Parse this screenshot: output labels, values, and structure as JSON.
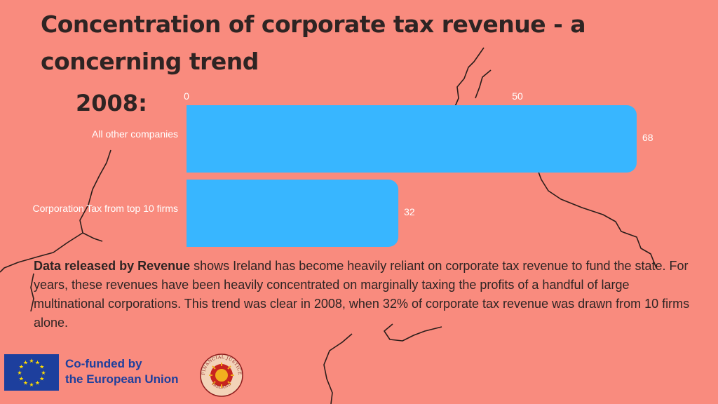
{
  "title": "Concentration of corporate tax revenue - a concerning trend",
  "chart_heading": "2008:",
  "chart_data": {
    "type": "bar",
    "orientation": "horizontal",
    "categories": [
      "All other companies",
      "Corporation Tax from top 10 firms"
    ],
    "values": [
      68,
      32
    ],
    "axis_ticks": [
      0,
      50
    ],
    "xlim": [
      0,
      100
    ],
    "bar_color": "#38b6ff",
    "grid": false,
    "legend": "none"
  },
  "paragraph": {
    "bold_lead": "Data released by Revenue",
    "rest": " shows Ireland has become heavily reliant on corporate tax revenue to fund the state. For years, these revenues have been heavily concentrated on marginally taxing the profits of a handful of large multinational corporations. This trend was clear in 2008, when 32% of corporate tax revenue was drawn from 10 firms alone."
  },
  "footer": {
    "eu_line1": "Co-funded by",
    "eu_line2": "the European Union",
    "eu_color": "#1d3f9d",
    "logo_text_top": "FINANCIAL JUSTICE",
    "logo_text_bottom": "IRELAND"
  }
}
